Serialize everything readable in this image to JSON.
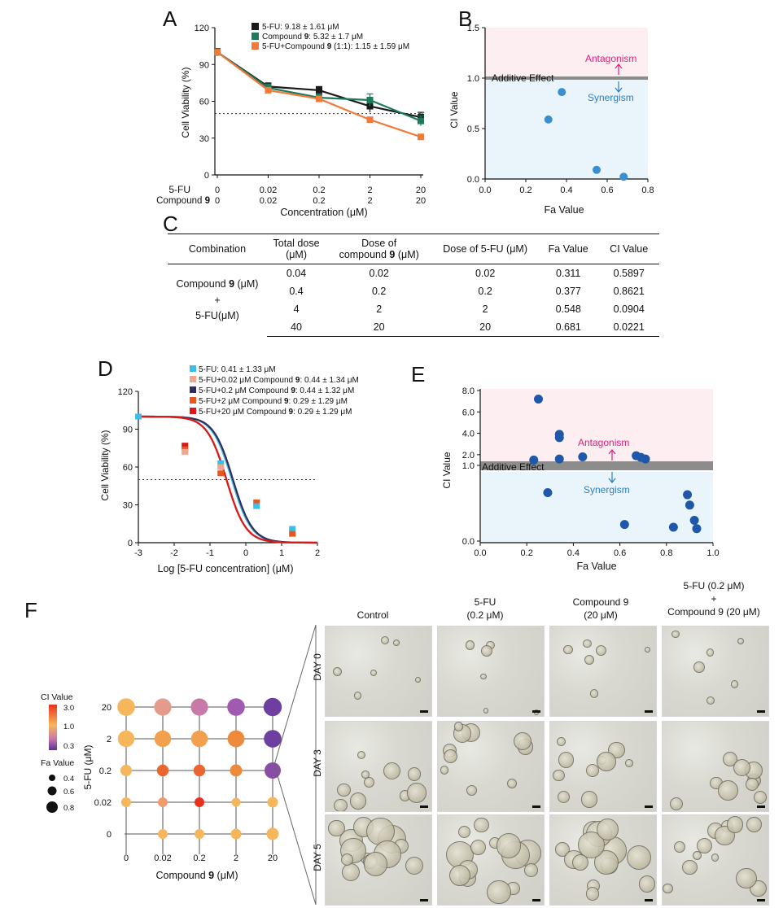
{
  "colors": {
    "fu_black": "#1a1a1a",
    "c9_green": "#1f7a5c",
    "combo_orange": "#ef7a3c",
    "ci_point": "#3a8fd0",
    "e_point": "#1f58a8",
    "antagonism_bg": "#fdeef1",
    "synergism_bg": "#eaf4fb",
    "additive_line": "#8c8c8c",
    "antagonism_text": "#e0207a",
    "synergism_text": "#2c7fc0"
  },
  "panelA": {
    "letter": "A",
    "ylabel": "Cell Viability (%)",
    "xlabel": "Concentration (μM)",
    "yticks": [
      "0",
      "30",
      "60",
      "90",
      "120"
    ],
    "row1_label": "5-FU",
    "row2_label_pre": "Compound ",
    "row2_label_bold": "9",
    "fu_ticks": [
      "0",
      "0.02",
      "0.2",
      "2",
      "20"
    ],
    "c9_ticks": [
      "0",
      "0.02",
      "0.2",
      "2",
      "20"
    ],
    "legend": [
      {
        "pre": "5-FU: 9.18 ± 1.61 μM",
        "bold": "",
        "post": ""
      },
      {
        "pre": "Compound ",
        "bold": "9",
        "post": ": 5.32 ± 1.7 μM"
      },
      {
        "pre": "5-FU+Compound ",
        "bold": "9",
        "post": " (1:1): 1.15 ± 1.59 μM"
      }
    ]
  },
  "panelB": {
    "letter": "B",
    "xlabel": "Fa Value",
    "ylabel": "CI Value",
    "xticks": [
      "0.0",
      "0.2",
      "0.4",
      "0.6",
      "0.8"
    ],
    "yticks": [
      "0.0",
      "0.5",
      "1.0",
      "1.5"
    ],
    "additive_label": "Additive Effect",
    "antagonism_label": "Antagonism",
    "synergism_label": "Synergism"
  },
  "panelC": {
    "letter": "C",
    "headers": {
      "combination": "Combination",
      "total_dose": "Total dose",
      "total_dose_unit": "(μM)",
      "dose_c9_line1": "Dose of",
      "dose_c9_pre": "compound ",
      "dose_c9_bold": "9",
      "dose_c9_post": " (μM)",
      "dose_fu": "Dose of 5-FU (μM)",
      "fa": "Fa Value",
      "ci": "CI Value"
    },
    "combo_label_pre": "Compound ",
    "combo_label_bold": "9",
    "combo_label_post": " (μM)",
    "combo_plus": "+",
    "combo_label2": "5-FU(μM)",
    "rows": [
      {
        "total": "0.04",
        "c9": "0.02",
        "fu": "0.02",
        "fa": "0.311",
        "ci": "0.5897"
      },
      {
        "total": "0.4",
        "c9": "0.2",
        "fu": "0.2",
        "fa": "0.377",
        "ci": "0.8621"
      },
      {
        "total": "4",
        "c9": "2",
        "fu": "2",
        "fa": "0.548",
        "ci": "0.0904"
      },
      {
        "total": "40",
        "c9": "20",
        "fu": "20",
        "fa": "0.681",
        "ci": "0.0221"
      }
    ]
  },
  "panelD": {
    "letter": "D",
    "ylabel": "Cell Viability (%)",
    "xlabel": "Log [5-FU concentration] (μM)",
    "xticks": [
      "-3",
      "-2",
      "-1",
      "0",
      "1",
      "2"
    ],
    "yticks": [
      "0",
      "30",
      "60",
      "90",
      "120"
    ],
    "legend": [
      {
        "pre": "5-FU: 0.41 ± 1.33 μM",
        "bold": "",
        "post": "",
        "color": "#3dbde8"
      },
      {
        "pre": "5-FU+0.02 μM Compound ",
        "bold": "9",
        "post": ": 0.44 ± 1.34 μM",
        "color": "#f2a48c"
      },
      {
        "pre": "5-FU+0.2 μM Compound ",
        "bold": "9",
        "post": ": 0.44 ± 1.32 μM",
        "color": "#2b2f5e"
      },
      {
        "pre": "5-FU+2 μM Compound ",
        "bold": "9",
        "post": ": 0.29 ± 1.29 μM",
        "color": "#e8581e"
      },
      {
        "pre": "5-FU+20 μM Compound ",
        "bold": "9",
        "post": ": 0.29 ± 1.29 μM",
        "color": "#d7191c"
      }
    ]
  },
  "panelE": {
    "letter": "E",
    "xlabel": "Fa Value",
    "ylabel": "CI Value",
    "xticks": [
      "0.0",
      "0.2",
      "0.4",
      "0.6",
      "0.8",
      "1.0"
    ],
    "yticks_upper": [
      "1.0",
      "2.0",
      "4.0",
      "6.0",
      "8.0"
    ],
    "ytick_lower": "0.0",
    "additive_label": "Additive Effect",
    "antagonism_label": "Antagonism",
    "synergism_label": "Synergism"
  },
  "panelF": {
    "letter": "F",
    "ylabel": "5-FU (μM)",
    "xlabel_pre": "Compound ",
    "xlabel_bold": "9",
    "xlabel_post": " (μM)",
    "xticks": [
      "0",
      "0.02",
      "0.2",
      "2",
      "20"
    ],
    "yticks": [
      "0",
      "0.02",
      "0.2",
      "2",
      "20"
    ],
    "ci_legend_title": "CI Value",
    "ci_legend_ticks": [
      "3.0",
      "1.0",
      "0.3"
    ],
    "fa_legend_title": "Fa Value",
    "fa_legend_ticks": [
      "0.4",
      "0.6",
      "0.8"
    ],
    "columns": [
      {
        "l1": "Control",
        "l2": "",
        "l3": ""
      },
      {
        "l1": "5-FU",
        "l2": "(0.2 μM)",
        "l3": ""
      },
      {
        "l1": "Compound 9",
        "l2": "(20 μM)",
        "l3": ""
      },
      {
        "l1": "5-FU (0.2 μM)",
        "l2": "+",
        "l3": "Compound 9 (20 μM)"
      }
    ],
    "days": [
      "DAY 0",
      "DAY 3",
      "DAY 5"
    ]
  },
  "chart_data": [
    {
      "id": "A",
      "type": "line",
      "title": "",
      "xlabel": "Concentration (μM)",
      "ylabel": "Cell Viability (%)",
      "categories": [
        "0",
        "0.02",
        "0.2",
        "2",
        "20"
      ],
      "ylim": [
        0,
        120
      ],
      "reference_line": 50,
      "series": [
        {
          "name": "5-FU",
          "color": "#1a1a1a",
          "marker": "square",
          "values": [
            100,
            72,
            69,
            56,
            47
          ],
          "errors": [
            3,
            3,
            3,
            5,
            4
          ]
        },
        {
          "name": "Compound 9",
          "color": "#1f7a5c",
          "marker": "square",
          "values": [
            100,
            71,
            63,
            61,
            44
          ],
          "errors": [
            3,
            3,
            3,
            5,
            4
          ]
        },
        {
          "name": "5-FU+Compound 9 (1:1)",
          "color": "#ef7a3c",
          "marker": "square",
          "values": [
            100,
            69,
            62,
            45,
            31
          ],
          "errors": [
            2,
            2,
            2,
            2,
            2
          ]
        }
      ]
    },
    {
      "id": "B",
      "type": "scatter",
      "xlabel": "Fa Value",
      "ylabel": "CI Value",
      "xlim": [
        0,
        0.8
      ],
      "ylim": [
        0,
        1.5
      ],
      "additive_line": 1.0,
      "points": [
        {
          "x": 0.311,
          "y": 0.5897
        },
        {
          "x": 0.377,
          "y": 0.8621
        },
        {
          "x": 0.548,
          "y": 0.0904
        },
        {
          "x": 0.681,
          "y": 0.0221
        }
      ]
    },
    {
      "id": "D",
      "type": "line",
      "xlabel": "Log [5-FU concentration] (μM)",
      "ylabel": "Cell Viability (%)",
      "xlim": [
        -3,
        2
      ],
      "ylim": [
        0,
        120
      ],
      "reference_line": 50,
      "curves": [
        {
          "name": "5-FU",
          "color": "#3dbde8",
          "ic50_log": -0.39,
          "hill": 1.6
        },
        {
          "name": "5-FU+0.02 μM Compound 9",
          "color": "#f2a48c",
          "ic50_log": -0.36,
          "hill": 1.6
        },
        {
          "name": "5-FU+0.2 μM Compound 9",
          "color": "#2b2f5e",
          "ic50_log": -0.36,
          "hill": 1.6
        },
        {
          "name": "5-FU+2 μM Compound 9",
          "color": "#e8581e",
          "ic50_log": -0.54,
          "hill": 1.6
        },
        {
          "name": "5-FU+20 μM Compound 9",
          "color": "#d7191c",
          "ic50_log": -0.54,
          "hill": 1.6
        }
      ],
      "points": [
        {
          "x": -3,
          "y": 100,
          "color": "#3dbde8"
        },
        {
          "x": -1.7,
          "y": 77,
          "color": "#d7191c"
        },
        {
          "x": -1.7,
          "y": 74,
          "color": "#e8581e"
        },
        {
          "x": -1.7,
          "y": 72,
          "color": "#f2a48c"
        },
        {
          "x": -0.7,
          "y": 63,
          "color": "#3dbde8"
        },
        {
          "x": -0.7,
          "y": 60,
          "color": "#f2a48c"
        },
        {
          "x": -0.7,
          "y": 55,
          "color": "#e8581e"
        },
        {
          "x": 0.3,
          "y": 32,
          "color": "#e8581e"
        },
        {
          "x": 0.3,
          "y": 29,
          "color": "#3dbde8"
        },
        {
          "x": 1.3,
          "y": 11,
          "color": "#3dbde8"
        },
        {
          "x": 1.3,
          "y": 7,
          "color": "#e8581e"
        }
      ]
    },
    {
      "id": "E",
      "type": "scatter",
      "xlabel": "Fa Value",
      "ylabel": "CI Value",
      "xlim": [
        0,
        1.0
      ],
      "points": [
        {
          "x": 0.25,
          "y": 7.2
        },
        {
          "x": 0.23,
          "y": 1.5
        },
        {
          "x": 0.34,
          "y": 3.9
        },
        {
          "x": 0.34,
          "y": 3.6
        },
        {
          "x": 0.34,
          "y": 1.6
        },
        {
          "x": 0.44,
          "y": 1.8
        },
        {
          "x": 0.67,
          "y": 1.9
        },
        {
          "x": 0.69,
          "y": 1.75
        },
        {
          "x": 0.71,
          "y": 1.6
        },
        {
          "x": 0.29,
          "y": 0.7
        },
        {
          "x": 0.62,
          "y": 0.24
        },
        {
          "x": 0.83,
          "y": 0.2
        },
        {
          "x": 0.89,
          "y": 0.67
        },
        {
          "x": 0.9,
          "y": 0.52
        },
        {
          "x": 0.92,
          "y": 0.3
        },
        {
          "x": 0.93,
          "y": 0.18
        }
      ]
    },
    {
      "id": "F",
      "type": "heatmap",
      "xlabel": "Compound 9 (μM)",
      "ylabel": "5-FU (μM)",
      "x": [
        "0",
        "0.02",
        "0.2",
        "2",
        "20"
      ],
      "y": [
        "0",
        "0.02",
        "0.2",
        "2",
        "20"
      ],
      "cells": [
        {
          "xi": 1,
          "yi": 0,
          "color": "#f6b65c",
          "fa": 0.3
        },
        {
          "xi": 2,
          "yi": 0,
          "color": "#f6b65c",
          "fa": 0.3
        },
        {
          "xi": 3,
          "yi": 0,
          "color": "#f6b65c",
          "fa": 0.35
        },
        {
          "xi": 4,
          "yi": 0,
          "color": "#f6b65c",
          "fa": 0.45
        },
        {
          "xi": 0,
          "yi": 1,
          "color": "#f6b65c",
          "fa": 0.3
        },
        {
          "xi": 1,
          "yi": 1,
          "color": "#ee9c6e",
          "fa": 0.3
        },
        {
          "xi": 2,
          "yi": 1,
          "color": "#e8321e",
          "fa": 0.3
        },
        {
          "xi": 3,
          "yi": 1,
          "color": "#f6b65c",
          "fa": 0.25
        },
        {
          "xi": 4,
          "yi": 1,
          "color": "#f6b65c",
          "fa": 0.35
        },
        {
          "xi": 0,
          "yi": 2,
          "color": "#f6b65c",
          "fa": 0.4
        },
        {
          "xi": 1,
          "yi": 2,
          "color": "#ea6530",
          "fa": 0.42
        },
        {
          "xi": 2,
          "yi": 2,
          "color": "#ea6530",
          "fa": 0.42
        },
        {
          "xi": 3,
          "yi": 2,
          "color": "#ee8a3c",
          "fa": 0.45
        },
        {
          "xi": 4,
          "yi": 2,
          "color": "#8a4da6",
          "fa": 0.7
        },
        {
          "xi": 0,
          "yi": 3,
          "color": "#f6b65c",
          "fa": 0.72
        },
        {
          "xi": 1,
          "yi": 3,
          "color": "#f3a04e",
          "fa": 0.72
        },
        {
          "xi": 2,
          "yi": 3,
          "color": "#f3a04e",
          "fa": 0.72
        },
        {
          "xi": 3,
          "yi": 3,
          "color": "#ee8a3c",
          "fa": 0.74
        },
        {
          "xi": 4,
          "yi": 3,
          "color": "#6d3fa0",
          "fa": 0.78
        },
        {
          "xi": 0,
          "yi": 4,
          "color": "#f6b65c",
          "fa": 0.78
        },
        {
          "xi": 1,
          "yi": 4,
          "color": "#e59a8e",
          "fa": 0.76
        },
        {
          "xi": 2,
          "yi": 4,
          "color": "#c879a8",
          "fa": 0.76
        },
        {
          "xi": 3,
          "yi": 4,
          "color": "#a05ab0",
          "fa": 0.78
        },
        {
          "xi": 4,
          "yi": 4,
          "color": "#6d3fa0",
          "fa": 0.82
        }
      ]
    }
  ]
}
